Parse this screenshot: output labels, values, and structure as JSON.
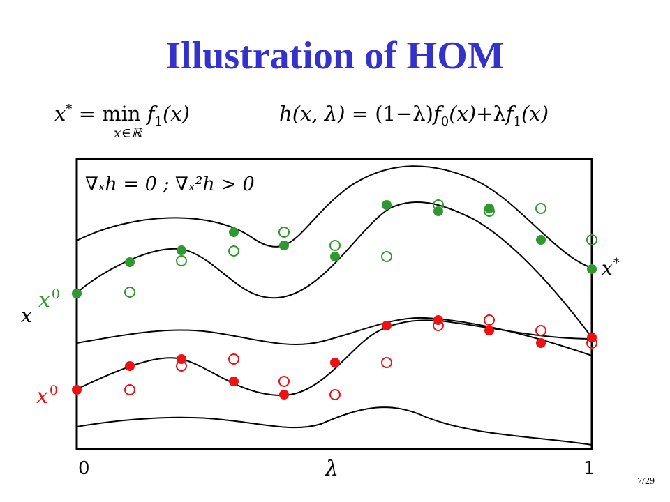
{
  "title": "Illustration of HOM",
  "equations": {
    "left_lhs": "x* = min f",
    "left_lhs_var": "x",
    "left_lhs_sup": "*",
    "left_mid": " = min ",
    "left_f": "f",
    "left_f_sub": "1",
    "left_arg": "(x)",
    "left_under": "x∈ℝ",
    "right_h": "h",
    "right_args": "(x, λ)",
    "right_eq": " = (1−λ)",
    "right_f0": "f",
    "right_f0_sub": "0",
    "right_f0_arg": "(x)",
    "right_plus": "+λ",
    "right_f1": "f",
    "right_f1_sub": "1",
    "right_f1_arg": "(x)"
  },
  "condition_label": "∇ₓh = 0 ;  ∇ₓ²h > 0",
  "labels": {
    "x_axis_var": "λ",
    "x_axis_start": "0",
    "x_axis_end": "1",
    "y_axis_var": "x",
    "green_start": "x0",
    "red_start": "x0",
    "green_end": "x*"
  },
  "colors": {
    "title": "#3333cc",
    "green": "#2e9a2e",
    "red": "#ee1111",
    "curve": "#000000"
  },
  "page_number": "7/29"
}
